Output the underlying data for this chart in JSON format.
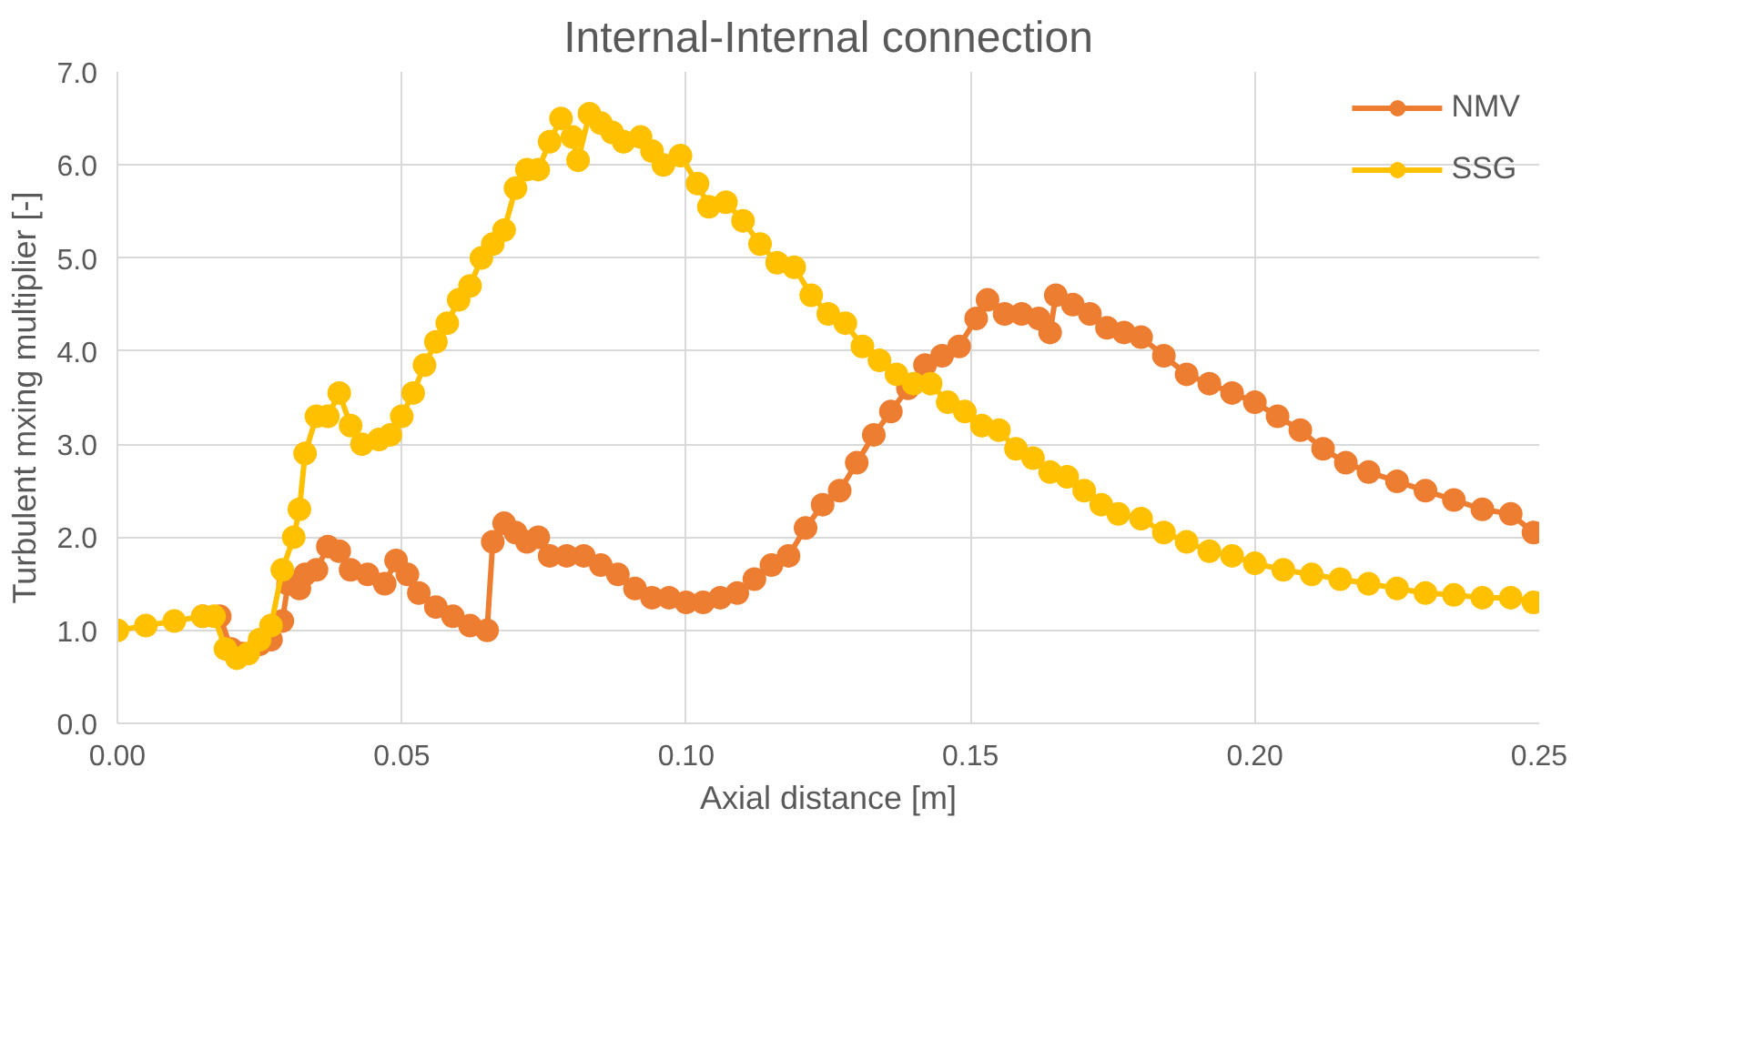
{
  "chart_data": {
    "type": "line",
    "title": "Internal-Internal connection",
    "xlabel": "Axial distance [m]",
    "ylabel": "Turbulent mxing multiplier [-]",
    "xlim": [
      0,
      0.25
    ],
    "ylim": [
      0,
      7
    ],
    "xticks": [
      {
        "value": 0,
        "label": "0.00"
      },
      {
        "value": 0.05,
        "label": "0.05"
      },
      {
        "value": 0.1,
        "label": "0.10"
      },
      {
        "value": 0.15,
        "label": "0.15"
      },
      {
        "value": 0.2,
        "label": "0.20"
      },
      {
        "value": 0.25,
        "label": "0.25"
      }
    ],
    "yticks": [
      {
        "value": 0,
        "label": "0.0"
      },
      {
        "value": 1,
        "label": "1.0"
      },
      {
        "value": 2,
        "label": "2.0"
      },
      {
        "value": 3,
        "label": "3.0"
      },
      {
        "value": 4,
        "label": "4.0"
      },
      {
        "value": 5,
        "label": "5.0"
      },
      {
        "value": 6,
        "label": "6.0"
      },
      {
        "value": 7,
        "label": "7.0"
      }
    ],
    "grid": true,
    "legend": "top right",
    "marker": "circle",
    "line_style": "solid",
    "series": [
      {
        "name": "NMV",
        "color": "#ed7d31",
        "x": [
          0.015,
          0.018,
          0.02,
          0.022,
          0.025,
          0.027,
          0.029,
          0.03,
          0.032,
          0.033,
          0.035,
          0.037,
          0.039,
          0.041,
          0.044,
          0.047,
          0.049,
          0.051,
          0.053,
          0.056,
          0.059,
          0.062,
          0.065,
          0.066,
          0.068,
          0.07,
          0.072,
          0.074,
          0.076,
          0.079,
          0.082,
          0.085,
          0.088,
          0.091,
          0.094,
          0.097,
          0.1,
          0.103,
          0.106,
          0.109,
          0.112,
          0.115,
          0.118,
          0.121,
          0.124,
          0.127,
          0.13,
          0.133,
          0.136,
          0.139,
          0.142,
          0.145,
          0.148,
          0.151,
          0.153,
          0.156,
          0.159,
          0.162,
          0.164,
          0.165,
          0.168,
          0.171,
          0.174,
          0.177,
          0.18,
          0.184,
          0.188,
          0.192,
          0.196,
          0.2,
          0.204,
          0.208,
          0.212,
          0.216,
          0.22,
          0.225,
          0.23,
          0.235,
          0.24,
          0.245,
          0.249
        ],
        "values": [
          1.15,
          1.15,
          0.8,
          0.75,
          0.85,
          0.9,
          1.1,
          1.5,
          1.45,
          1.6,
          1.65,
          1.9,
          1.85,
          1.65,
          1.6,
          1.5,
          1.75,
          1.6,
          1.4,
          1.25,
          1.15,
          1.05,
          1.0,
          1.95,
          2.15,
          2.05,
          1.95,
          2.0,
          1.8,
          1.8,
          1.8,
          1.7,
          1.6,
          1.45,
          1.35,
          1.35,
          1.3,
          1.3,
          1.35,
          1.4,
          1.55,
          1.7,
          1.8,
          2.1,
          2.35,
          2.5,
          2.8,
          3.1,
          3.35,
          3.6,
          3.85,
          3.95,
          4.05,
          4.35,
          4.55,
          4.4,
          4.4,
          4.35,
          4.2,
          4.6,
          4.5,
          4.4,
          4.25,
          4.2,
          4.15,
          3.95,
          3.75,
          3.65,
          3.55,
          3.45,
          3.3,
          3.15,
          2.95,
          2.8,
          2.7,
          2.6,
          2.5,
          2.4,
          2.3,
          2.25,
          2.05
        ]
      },
      {
        "name": "SSG",
        "color": "#ffc000",
        "x": [
          0.0,
          0.005,
          0.01,
          0.015,
          0.017,
          0.019,
          0.021,
          0.023,
          0.025,
          0.027,
          0.029,
          0.031,
          0.032,
          0.033,
          0.035,
          0.037,
          0.039,
          0.041,
          0.043,
          0.046,
          0.048,
          0.05,
          0.052,
          0.054,
          0.056,
          0.058,
          0.06,
          0.062,
          0.064,
          0.066,
          0.068,
          0.07,
          0.072,
          0.074,
          0.076,
          0.078,
          0.08,
          0.081,
          0.083,
          0.085,
          0.087,
          0.089,
          0.092,
          0.094,
          0.096,
          0.099,
          0.102,
          0.104,
          0.107,
          0.11,
          0.113,
          0.116,
          0.119,
          0.122,
          0.125,
          0.128,
          0.131,
          0.134,
          0.137,
          0.14,
          0.143,
          0.146,
          0.149,
          0.152,
          0.155,
          0.158,
          0.161,
          0.164,
          0.167,
          0.17,
          0.173,
          0.176,
          0.18,
          0.184,
          0.188,
          0.192,
          0.196,
          0.2,
          0.205,
          0.21,
          0.215,
          0.22,
          0.225,
          0.23,
          0.235,
          0.24,
          0.245,
          0.249
        ],
        "values": [
          1.0,
          1.05,
          1.1,
          1.15,
          1.15,
          0.8,
          0.7,
          0.75,
          0.9,
          1.05,
          1.65,
          2.0,
          2.3,
          2.9,
          3.3,
          3.3,
          3.55,
          3.2,
          3.0,
          3.05,
          3.1,
          3.3,
          3.55,
          3.85,
          4.1,
          4.3,
          4.55,
          4.7,
          5.0,
          5.15,
          5.3,
          5.75,
          5.95,
          5.95,
          6.25,
          6.5,
          6.3,
          6.05,
          6.55,
          6.45,
          6.35,
          6.25,
          6.3,
          6.15,
          6.0,
          6.1,
          5.8,
          5.55,
          5.6,
          5.4,
          5.15,
          4.95,
          4.9,
          4.6,
          4.4,
          4.3,
          4.05,
          3.9,
          3.75,
          3.65,
          3.65,
          3.45,
          3.35,
          3.2,
          3.15,
          2.95,
          2.85,
          2.7,
          2.65,
          2.5,
          2.35,
          2.25,
          2.2,
          2.05,
          1.95,
          1.85,
          1.8,
          1.72,
          1.65,
          1.6,
          1.55,
          1.5,
          1.45,
          1.4,
          1.38,
          1.35,
          1.35,
          1.3
        ]
      }
    ]
  }
}
